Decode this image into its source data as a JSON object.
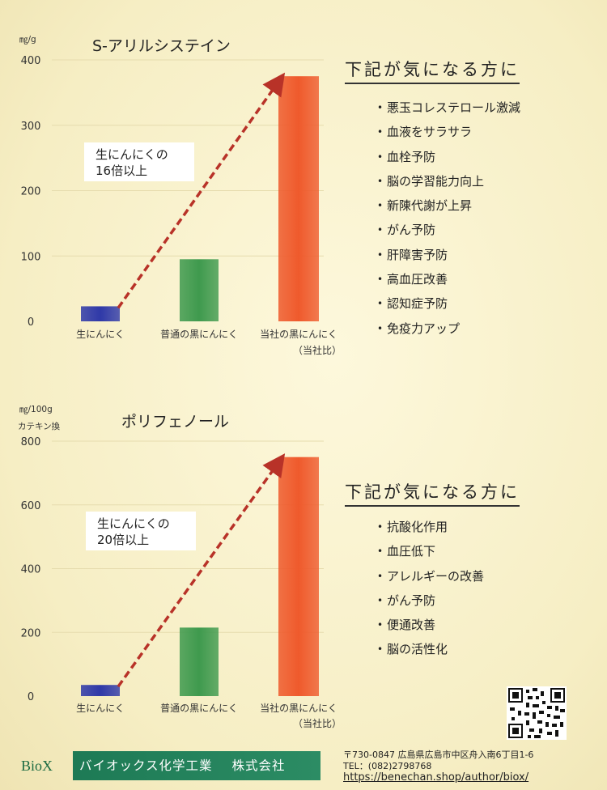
{
  "chart_data": [
    {
      "type": "bar",
      "title": "S-アリルシステイン",
      "ylabel": "㎎/g",
      "ylabel2": "",
      "ylim": [
        0,
        400
      ],
      "yticks": [
        "0",
        "100",
        "200",
        "300",
        "400"
      ],
      "ytick_values": [
        0,
        100,
        200,
        300,
        400
      ],
      "categories": [
        "生にんにく",
        "普通の黒にんにく",
        "当社の黒にんにく"
      ],
      "category_note": "（当社比）",
      "values": [
        23,
        95,
        375
      ],
      "colors": [
        "#2f39a8",
        "#3f9a4e",
        "#ef5a2c"
      ],
      "callout": [
        "生にんにくの",
        "16倍以上"
      ],
      "arrow_color": "#b83228"
    },
    {
      "type": "bar",
      "title": "ポリフェノール",
      "ylabel": "㎎/100g",
      "ylabel2": "カテキン換",
      "ylim": [
        0,
        800
      ],
      "yticks": [
        "0",
        "200",
        "400",
        "600",
        "800"
      ],
      "ytick_values": [
        0,
        200,
        400,
        600,
        800
      ],
      "categories": [
        "生にんにく",
        "普通の黒にんにく",
        "当社の黒にんにく"
      ],
      "category_note": "（当社比）",
      "values": [
        35,
        215,
        750
      ],
      "colors": [
        "#2f39a8",
        "#3f9a4e",
        "#ef5a2c"
      ],
      "callout": [
        "生にんにくの",
        "20倍以上"
      ],
      "arrow_color": "#b83228"
    }
  ],
  "benefits": [
    {
      "heading": "下記が気になる方に",
      "items": [
        "悪玉コレステロール激減",
        "血液をサラサラ",
        "血栓予防",
        "脳の学習能力向上",
        "新陳代謝が上昇",
        "がん予防",
        "肝障害予防",
        "高血圧改善",
        "認知症予防",
        "免疫力アップ"
      ]
    },
    {
      "heading": "下記が気になる方に",
      "items": [
        "抗酸化作用",
        "血圧低下",
        "アレルギーの改善",
        "がん予防",
        "便通改善",
        "脳の活性化"
      ]
    }
  ],
  "footer": {
    "logo": "BioX",
    "company": "バイオックス化学工業",
    "company_type": "株式会社",
    "address": "〒730-0847 広島県広島市中区舟入南6丁目1-6",
    "tel": "TEL：(082)2798768",
    "url": "https://benechan.shop/author/biox/"
  }
}
